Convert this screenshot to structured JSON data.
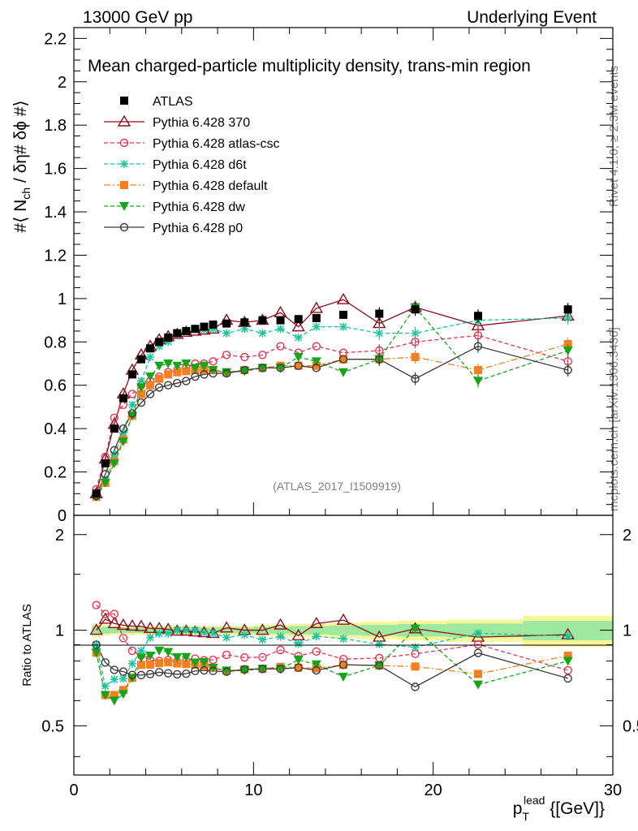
{
  "header": {
    "left": "13000 GeV pp",
    "right": "Underlying Event"
  },
  "side": {
    "rivet": "Rivet 4.1.0, ≥ 2.3M events",
    "mcplots": "mcplots.cern.ch [arXiv:1306.3436]"
  },
  "chart_data": {
    "type": "scatter",
    "title": "Mean charged-particle multiplicity density, trans-min region",
    "analysis_id": "(ATLAS_2017_I1509919)",
    "ylabel": "#⟨ N_ch / δη# δϕ #⟩",
    "xlabel": "p_T^lead {[GeV]}",
    "xlim": [
      0,
      30
    ],
    "ylim": [
      0,
      2.25
    ],
    "xticks": [
      0,
      10,
      20,
      30
    ],
    "yticks": [
      0,
      0.2,
      0.4,
      0.6,
      0.8,
      1,
      1.2,
      1.4,
      1.6,
      1.8,
      2,
      2.2
    ],
    "ratio": {
      "ylabel": "Ratio to ATLAS",
      "ylim": [
        0.35,
        2.3
      ],
      "yticks": [
        0.5,
        1,
        2
      ]
    },
    "x": [
      1.25,
      1.75,
      2.25,
      2.75,
      3.25,
      3.75,
      4.25,
      4.75,
      5.25,
      5.75,
      6.25,
      6.75,
      7.25,
      7.75,
      8.5,
      9.5,
      10.5,
      11.5,
      12.5,
      13.5,
      15,
      17,
      19,
      22.5,
      27.5
    ],
    "series": [
      {
        "name": "ATLAS",
        "color": "#000000",
        "marker": "square-filled",
        "line": "none",
        "values": [
          0.1,
          0.24,
          0.4,
          0.54,
          0.65,
          0.72,
          0.77,
          0.8,
          0.82,
          0.84,
          0.85,
          0.86,
          0.87,
          0.88,
          0.885,
          0.89,
          0.9,
          0.9,
          0.905,
          0.91,
          0.925,
          0.93,
          0.95,
          0.92,
          0.95
        ]
      },
      {
        "name": "Pythia 6.428 370",
        "color": "#8b0f1e",
        "marker": "triangle-open",
        "line": "solid",
        "values": [
          0.1,
          0.26,
          0.42,
          0.56,
          0.67,
          0.74,
          0.78,
          0.81,
          0.825,
          0.835,
          0.845,
          0.85,
          0.855,
          0.86,
          0.9,
          0.89,
          0.9,
          0.935,
          0.87,
          0.955,
          0.995,
          0.885,
          0.96,
          0.875,
          0.92
        ]
      },
      {
        "name": "Pythia 6.428 atlas-csc",
        "color": "#e8334f",
        "marker": "circle-open",
        "line": "dashed",
        "values": [
          0.12,
          0.27,
          0.45,
          0.51,
          0.56,
          0.6,
          0.62,
          0.64,
          0.66,
          0.67,
          0.68,
          0.7,
          0.7,
          0.71,
          0.74,
          0.73,
          0.74,
          0.78,
          0.75,
          0.78,
          0.75,
          0.76,
          0.8,
          0.83,
          0.71
        ]
      },
      {
        "name": "Pythia 6.428 d6t",
        "color": "#16c59a",
        "marker": "star",
        "line": "dashed",
        "values": [
          0.09,
          0.16,
          0.28,
          0.38,
          0.51,
          0.62,
          0.73,
          0.78,
          0.8,
          0.84,
          0.85,
          0.86,
          0.855,
          0.86,
          0.84,
          0.86,
          0.84,
          0.86,
          0.82,
          0.87,
          0.87,
          0.84,
          0.84,
          0.9,
          0.91
        ]
      },
      {
        "name": "Pythia 6.428 default",
        "color": "#f47f20",
        "marker": "square-filled",
        "line": "dashdot",
        "values": [
          0.085,
          0.15,
          0.25,
          0.35,
          0.46,
          0.56,
          0.6,
          0.63,
          0.65,
          0.66,
          0.665,
          0.67,
          0.67,
          0.67,
          0.66,
          0.67,
          0.68,
          0.69,
          0.69,
          0.69,
          0.72,
          0.72,
          0.73,
          0.67,
          0.79
        ]
      },
      {
        "name": "Pythia 6.428 dw",
        "color": "#16a51a",
        "marker": "triangle-down-filled",
        "line": "dashed",
        "values": [
          0.085,
          0.15,
          0.24,
          0.34,
          0.46,
          0.59,
          0.64,
          0.69,
          0.7,
          0.69,
          0.7,
          0.68,
          0.69,
          0.67,
          0.66,
          0.665,
          0.68,
          0.68,
          0.73,
          0.71,
          0.66,
          0.72,
          0.96,
          0.62,
          0.76
        ]
      },
      {
        "name": "Pythia 6.428 p0",
        "color": "#3a3a3a",
        "marker": "circle-open",
        "line": "solid",
        "values": [
          0.09,
          0.19,
          0.3,
          0.4,
          0.47,
          0.52,
          0.56,
          0.59,
          0.6,
          0.61,
          0.62,
          0.64,
          0.65,
          0.655,
          0.655,
          0.67,
          0.68,
          0.68,
          0.69,
          0.68,
          0.72,
          0.72,
          0.63,
          0.78,
          0.67
        ]
      }
    ]
  }
}
